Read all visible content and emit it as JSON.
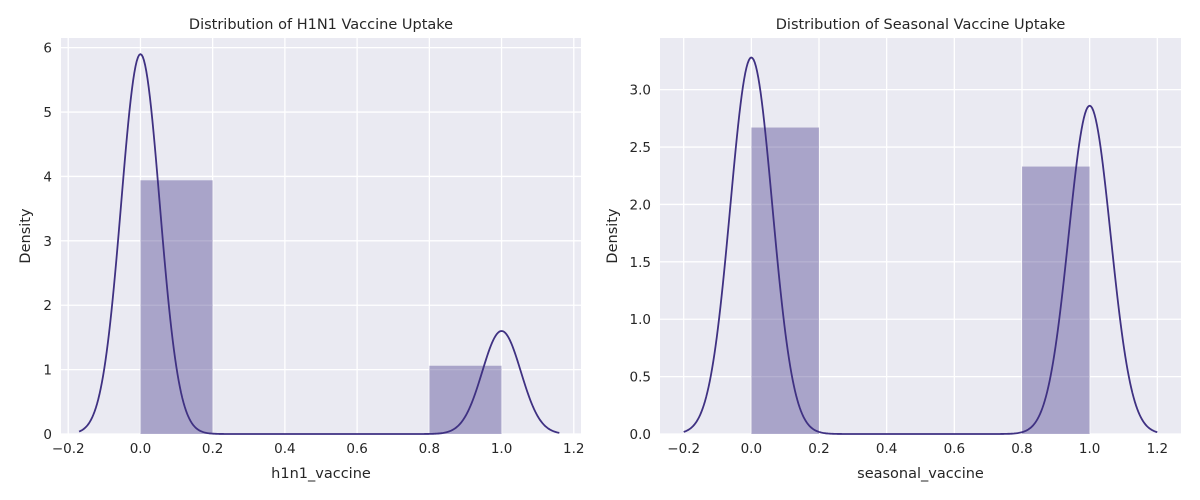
{
  "theme": {
    "panel_bg": "#eaeaf2",
    "grid": "#ffffff",
    "bar_fill": "#483d8b",
    "bar_opacity": 0.4,
    "kde_line": "#3f3182"
  },
  "chart_data": [
    {
      "type": "histogram",
      "title": "Distribution of H1N1 Vaccine Uptake",
      "xlabel": "h1n1_vaccine",
      "ylabel": "Density",
      "xlim": [
        -0.22,
        1.22
      ],
      "ylim": [
        0,
        6.15
      ],
      "xticks": [
        -0.2,
        0.0,
        0.2,
        0.4,
        0.6,
        0.8,
        1.0,
        1.2
      ],
      "xtick_labels": [
        "−0.2",
        "0.0",
        "0.2",
        "0.4",
        "0.6",
        "0.8",
        "1.0",
        "1.2"
      ],
      "yticks": [
        0,
        1,
        2,
        3,
        4,
        5,
        6
      ],
      "ytick_labels": [
        "0",
        "1",
        "2",
        "3",
        "4",
        "5",
        "6"
      ],
      "bars": [
        {
          "x0": 0.0,
          "x1": 0.2,
          "value": 3.94
        },
        {
          "x0": 0.8,
          "x1": 1.0,
          "value": 1.06
        }
      ],
      "kde": {
        "range": [
          -0.17,
          1.16
        ],
        "components": [
          {
            "mean": 0.0,
            "sd": 0.0534,
            "peak": 5.9
          },
          {
            "mean": 1.0,
            "sd": 0.0534,
            "peak": 1.6
          }
        ]
      }
    },
    {
      "type": "histogram",
      "title": "Distribution of Seasonal Vaccine Uptake",
      "xlabel": "seasonal_vaccine",
      "ylabel": "Density",
      "xlim": [
        -0.27,
        1.27
      ],
      "ylim": [
        0,
        3.45
      ],
      "xticks": [
        -0.2,
        0.0,
        0.2,
        0.4,
        0.6,
        0.8,
        1.0,
        1.2
      ],
      "xtick_labels": [
        "−0.2",
        "0.0",
        "0.2",
        "0.4",
        "0.6",
        "0.8",
        "1.0",
        "1.2"
      ],
      "yticks": [
        0.0,
        0.5,
        1.0,
        1.5,
        2.0,
        2.5,
        3.0
      ],
      "ytick_labels": [
        "0.0",
        "0.5",
        "1.0",
        "1.5",
        "2.0",
        "2.5",
        "3.0"
      ],
      "bars": [
        {
          "x0": 0.0,
          "x1": 0.2,
          "value": 2.67
        },
        {
          "x0": 0.8,
          "x1": 1.0,
          "value": 2.33
        }
      ],
      "kde": {
        "range": [
          -0.2,
          1.2
        ],
        "components": [
          {
            "mean": 0.0,
            "sd": 0.062,
            "peak": 3.28
          },
          {
            "mean": 1.0,
            "sd": 0.062,
            "peak": 2.86
          }
        ]
      }
    }
  ]
}
